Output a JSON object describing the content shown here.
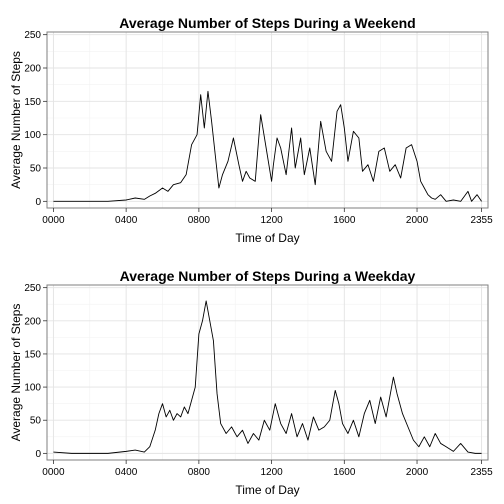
{
  "chart_data": [
    {
      "type": "line",
      "title": "Average Number of Steps During a Weekend",
      "xlabel": "Time of Day",
      "ylabel": "Average Number of Steps",
      "xlim": [
        0,
        2355
      ],
      "ylim": [
        0,
        250
      ],
      "x_ticks": [
        0,
        400,
        800,
        1200,
        1600,
        2000,
        2355
      ],
      "x_tick_labels": [
        "0000",
        "0400",
        "0800",
        "1200",
        "1600",
        "2000",
        "2355"
      ],
      "y_ticks": [
        0,
        50,
        100,
        150,
        200,
        250
      ],
      "y_tick_labels": [
        "0",
        "50",
        "100",
        "150",
        "200",
        "250"
      ],
      "grid": true,
      "series": [
        {
          "x": [
            0,
            100,
            200,
            300,
            400,
            450,
            500,
            530,
            560,
            600,
            630,
            660,
            700,
            730,
            760,
            790,
            810,
            830,
            850,
            870,
            890,
            910,
            930,
            960,
            990,
            1020,
            1040,
            1060,
            1080,
            1110,
            1140,
            1170,
            1200,
            1210,
            1230,
            1250,
            1280,
            1310,
            1330,
            1360,
            1380,
            1410,
            1440,
            1470,
            1500,
            1530,
            1560,
            1580,
            1600,
            1620,
            1650,
            1680,
            1700,
            1730,
            1760,
            1790,
            1820,
            1850,
            1880,
            1910,
            1940,
            1970,
            2000,
            2020,
            2040,
            2060,
            2080,
            2100,
            2130,
            2160,
            2200,
            2240,
            2280,
            2300,
            2330,
            2355
          ],
          "y": [
            0,
            0,
            0,
            0,
            2,
            5,
            3,
            8,
            12,
            20,
            15,
            25,
            28,
            40,
            85,
            100,
            160,
            110,
            165,
            120,
            70,
            20,
            40,
            60,
            95,
            55,
            30,
            45,
            35,
            30,
            130,
            80,
            30,
            55,
            95,
            80,
            40,
            110,
            50,
            95,
            40,
            80,
            25,
            120,
            75,
            60,
            135,
            145,
            110,
            60,
            105,
            95,
            45,
            55,
            30,
            75,
            80,
            45,
            55,
            35,
            80,
            85,
            60,
            30,
            20,
            10,
            5,
            3,
            10,
            0,
            2,
            0,
            15,
            0,
            10,
            0
          ]
        }
      ]
    },
    {
      "type": "line",
      "title": "Average Number of Steps During a Weekday",
      "xlabel": "Time of Day",
      "ylabel": "Average Number of Steps",
      "xlim": [
        0,
        2355
      ],
      "ylim": [
        0,
        250
      ],
      "x_ticks": [
        0,
        400,
        800,
        1200,
        1600,
        2000,
        2355
      ],
      "x_tick_labels": [
        "0000",
        "0400",
        "0800",
        "1200",
        "1600",
        "2000",
        "2355"
      ],
      "y_ticks": [
        0,
        50,
        100,
        150,
        200,
        250
      ],
      "y_tick_labels": [
        "0",
        "50",
        "100",
        "150",
        "200",
        "250"
      ],
      "grid": true,
      "series": [
        {
          "x": [
            0,
            100,
            200,
            300,
            400,
            450,
            500,
            530,
            560,
            580,
            600,
            620,
            640,
            660,
            680,
            700,
            720,
            740,
            760,
            780,
            800,
            820,
            840,
            860,
            880,
            900,
            920,
            950,
            980,
            1010,
            1040,
            1070,
            1100,
            1130,
            1160,
            1190,
            1220,
            1250,
            1280,
            1310,
            1340,
            1370,
            1400,
            1430,
            1460,
            1490,
            1520,
            1550,
            1570,
            1590,
            1620,
            1650,
            1680,
            1710,
            1740,
            1770,
            1800,
            1830,
            1850,
            1870,
            1890,
            1920,
            1950,
            1980,
            2010,
            2040,
            2070,
            2100,
            2130,
            2160,
            2200,
            2240,
            2280,
            2320,
            2355
          ],
          "y": [
            2,
            0,
            0,
            0,
            3,
            5,
            2,
            10,
            35,
            60,
            75,
            55,
            65,
            50,
            60,
            55,
            70,
            60,
            80,
            100,
            180,
            200,
            230,
            200,
            170,
            90,
            45,
            30,
            40,
            25,
            35,
            15,
            30,
            20,
            50,
            35,
            75,
            45,
            30,
            60,
            25,
            45,
            20,
            55,
            35,
            40,
            50,
            95,
            75,
            45,
            30,
            50,
            25,
            60,
            80,
            45,
            85,
            55,
            85,
            115,
            90,
            60,
            40,
            20,
            10,
            25,
            10,
            30,
            15,
            10,
            3,
            15,
            2,
            0,
            0
          ]
        }
      ]
    }
  ]
}
